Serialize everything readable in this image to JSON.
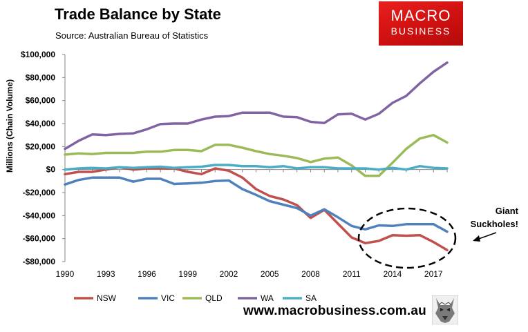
{
  "header": {
    "title": "Trade Balance by State",
    "subtitle": "Source: Australian Bureau of Statistics"
  },
  "logo": {
    "line1": "MACRO",
    "line2": "BUSINESS",
    "color": "#e01b1b"
  },
  "annotation": {
    "line1": "Giant",
    "line2": "Suckholes!"
  },
  "footer": {
    "url": "www.macrobusiness.com.au",
    "emblem": "wolf-icon"
  },
  "chart_data": {
    "type": "line",
    "title": "Trade Balance by State",
    "xlabel": "",
    "ylabel": "Millions (Chain Volume)",
    "xlim": [
      1990,
      2018
    ],
    "ylim": [
      -80000,
      100000
    ],
    "grid": false,
    "legend": "bottom",
    "x_ticks": [
      1990,
      1993,
      1996,
      1999,
      2002,
      2005,
      2008,
      2011,
      2014,
      2017
    ],
    "x_tick_labels": [
      "1990",
      "1993",
      "1996",
      "1999",
      "2002",
      "2005",
      "2008",
      "2011",
      "2014",
      "2017"
    ],
    "y_ticks": [
      100000,
      80000,
      60000,
      40000,
      20000,
      0,
      -20000,
      -40000,
      -60000,
      -80000
    ],
    "y_tick_labels": [
      "$100,000",
      "$80,000",
      "$60,000",
      "$40,000",
      "$20,000",
      "$0",
      "-$20,000",
      "-$40,000",
      "-$60,000",
      "-$80,000"
    ],
    "x": [
      1990,
      1991,
      1992,
      1993,
      1994,
      1995,
      1996,
      1997,
      1998,
      1999,
      2000,
      2001,
      2002,
      2003,
      2004,
      2005,
      2006,
      2007,
      2008,
      2009,
      2010,
      2011,
      2012,
      2013,
      2014,
      2015,
      2016,
      2017,
      2018
    ],
    "series": [
      {
        "name": "NSW",
        "color": "#c0504d",
        "values": [
          -4000,
          -2000,
          -2000,
          0,
          2000,
          0,
          1000,
          1000,
          1000,
          -2000,
          -4000,
          1000,
          -1000,
          -7000,
          -17000,
          -23000,
          -26000,
          -31000,
          -42000,
          -35000,
          -47000,
          -59000,
          -64000,
          -62000,
          -57000,
          -57500,
          -57000,
          -63000,
          -70000
        ]
      },
      {
        "name": "VIC",
        "color": "#4f81bd",
        "values": [
          -13000,
          -9000,
          -7000,
          -7000,
          -7000,
          -10500,
          -8000,
          -8000,
          -12500,
          -12000,
          -11500,
          -10000,
          -9500,
          -17000,
          -22000,
          -27500,
          -30500,
          -33500,
          -40000,
          -34500,
          -41500,
          -49000,
          -52000,
          -48500,
          -49000,
          -47500,
          -47500,
          -47500,
          -54000
        ]
      },
      {
        "name": "QLD",
        "color": "#9bbb59",
        "values": [
          13000,
          14000,
          13500,
          14500,
          14500,
          14500,
          15500,
          15500,
          17000,
          17000,
          16000,
          21500,
          21500,
          19000,
          16000,
          13500,
          12000,
          10000,
          6500,
          9500,
          10500,
          3500,
          -5500,
          -5500,
          6000,
          18000,
          27000,
          30000,
          23500
        ]
      },
      {
        "name": "WA",
        "color": "#8064a2",
        "values": [
          18000,
          25000,
          30500,
          30000,
          31000,
          31500,
          35000,
          39500,
          40000,
          40000,
          43500,
          46000,
          46500,
          49500,
          49500,
          49500,
          46000,
          45500,
          41500,
          40500,
          48000,
          48500,
          43500,
          48500,
          58000,
          64000,
          75000,
          85000,
          93000
        ]
      },
      {
        "name": "SA",
        "color": "#4bacc6",
        "values": [
          0,
          1000,
          1500,
          1000,
          2000,
          1500,
          2000,
          2500,
          1500,
          2000,
          2500,
          4000,
          4000,
          3000,
          3000,
          2000,
          3000,
          1000,
          2000,
          2000,
          1000,
          1000,
          1000,
          0,
          1500,
          0,
          3000,
          1500,
          1000
        ]
      }
    ]
  }
}
